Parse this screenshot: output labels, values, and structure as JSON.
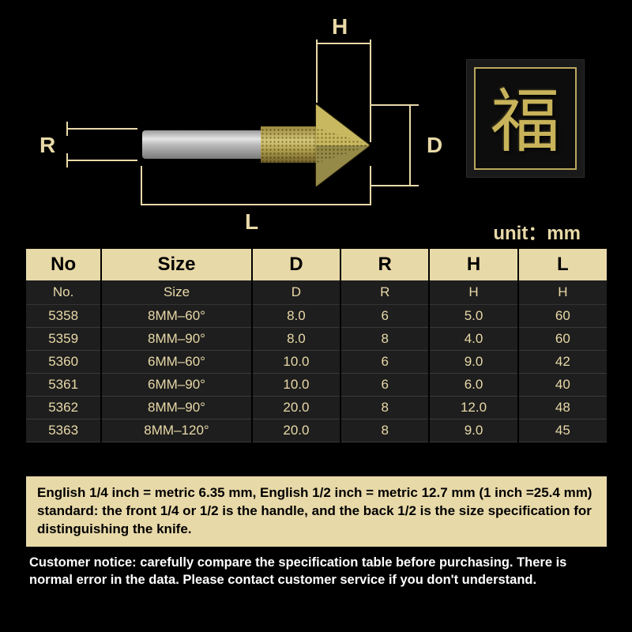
{
  "colors": {
    "background": "#000000",
    "accent": "#e8d9a8",
    "table_bg": "#1e1e1e",
    "text_light": "#ffffff",
    "gold": "#c8b35a"
  },
  "diagram": {
    "labels": {
      "R": "R",
      "L": "L",
      "H": "H",
      "D": "D"
    }
  },
  "badge": {
    "char": "福"
  },
  "unit_label": "unit：mm",
  "table": {
    "header1": [
      "No",
      "Size",
      "D",
      "R",
      "H",
      "L"
    ],
    "header2": [
      "No.",
      "Size",
      "D",
      "R",
      "H",
      "H"
    ],
    "col_widths": [
      "95px",
      "190px",
      "112px",
      "112px",
      "112px",
      "112px"
    ],
    "rows": [
      [
        "5358",
        "8MM–60°",
        "8.0",
        "6",
        "5.0",
        "60"
      ],
      [
        "5359",
        "8MM–90°",
        "8.0",
        "8",
        "4.0",
        "60"
      ],
      [
        "5360",
        "6MM–60°",
        "10.0",
        "6",
        "9.0",
        "42"
      ],
      [
        "5361",
        "6MM–90°",
        "10.0",
        "6",
        "6.0",
        "40"
      ],
      [
        "5362",
        "8MM–90°",
        "20.0",
        "8",
        "12.0",
        "48"
      ],
      [
        "5363",
        "8MM–120°",
        "20.0",
        "8",
        "9.0",
        "45"
      ]
    ]
  },
  "note1": "English 1/4 inch = metric 6.35 mm, English 1/2 inch = metric 12.7 mm (1 inch =25.4 mm) standard: the front 1/4 or 1/2 is the handle, and the back 1/2 is the size specification for distinguishing the knife.",
  "note2": "Customer notice: carefully compare the specification table before purchasing. There is normal error in the data. Please contact customer service if you don't understand."
}
